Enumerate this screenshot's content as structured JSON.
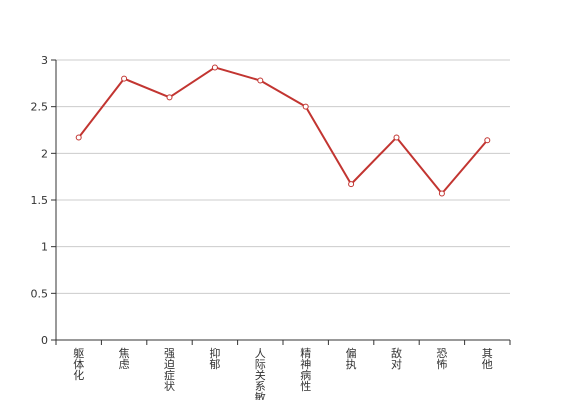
{
  "chart_data": {
    "type": "line",
    "categories": [
      "躯体化",
      "焦虑",
      "强迫症状",
      "抑郁",
      "人际关系敏感",
      "精神病性",
      "偏执",
      "敌对",
      "恐怖",
      "其他"
    ],
    "series": [
      {
        "values": [
          2.17,
          2.8,
          2.6,
          2.92,
          2.78,
          2.5,
          1.67,
          2.17,
          1.57,
          2.14
        ]
      }
    ],
    "ylim": [
      0,
      3
    ],
    "yticks": [
      0,
      0.5,
      1,
      1.5,
      2,
      2.5,
      3
    ],
    "grid": true,
    "colors": {
      "line": "#c23531",
      "grid": "#cccccc",
      "axis": "#333333"
    }
  }
}
